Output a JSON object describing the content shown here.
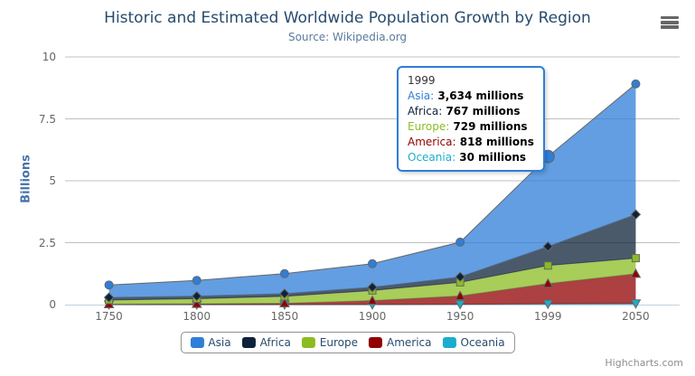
{
  "chart_data": {
    "type": "area",
    "stacking": "normal",
    "title": "Historic and Estimated Worldwide Population Growth by Region",
    "subtitle": "Source: Wikipedia.org",
    "categories": [
      "1750",
      "1800",
      "1850",
      "1900",
      "1950",
      "1999",
      "2050"
    ],
    "unit": "millions",
    "series": [
      {
        "name": "Asia",
        "color": "#2f7ed8",
        "marker": "circle",
        "values": [
          502,
          635,
          809,
          947,
          1402,
          3634,
          5268
        ]
      },
      {
        "name": "Africa",
        "color": "#0d233a",
        "marker": "diamond",
        "values": [
          106,
          107,
          111,
          133,
          221,
          767,
          1766
        ]
      },
      {
        "name": "Europe",
        "color": "#8bbc21",
        "marker": "square",
        "values": [
          163,
          203,
          276,
          408,
          547,
          729,
          628
        ]
      },
      {
        "name": "America",
        "color": "#910000",
        "marker": "triangle",
        "values": [
          18,
          31,
          54,
          156,
          339,
          818,
          1201
        ]
      },
      {
        "name": "Oceania",
        "color": "#1aadce",
        "marker": "triangle-down",
        "values": [
          2,
          2,
          2,
          6,
          13,
          30,
          46
        ]
      }
    ],
    "yAxis": {
      "title": "Billions",
      "tick_labels": [
        "0",
        "2.5",
        "5",
        "7.5",
        "10"
      ],
      "tick_values": [
        0,
        2.5,
        5,
        7.5,
        10
      ],
      "lim": [
        0,
        10
      ]
    },
    "xAxis": {
      "labels": [
        "1750",
        "1800",
        "1850",
        "1900",
        "1950",
        "1999",
        "2050"
      ]
    },
    "legend": {
      "position": "bottom",
      "items": [
        "Asia",
        "Africa",
        "Europe",
        "America",
        "Oceania"
      ]
    },
    "grid": true,
    "style": {
      "line_color": "#666666",
      "fill_opacity": 0.75,
      "grid_color": "#C0C0C0",
      "axis_line_color": "#C0D0E0",
      "title_color": "#274b6d",
      "subtitle_color": "#5b7a9e",
      "label_color": "#666666",
      "y_title_color": "#4572A7",
      "legend_text_color": "#274b6d",
      "legend_border_color": "#909090"
    },
    "hovered_point": {
      "series": "Asia",
      "category": "1999"
    }
  },
  "tooltip": {
    "visible": true,
    "header": "1999",
    "border_color": "#2f7ed8",
    "rows": [
      {
        "name": "Asia",
        "color": "#2f7ed8",
        "value": "3,634 millions"
      },
      {
        "name": "Africa",
        "color": "#0d233a",
        "value": "767 millions"
      },
      {
        "name": "Europe",
        "color": "#8bbc21",
        "value": "729 millions"
      },
      {
        "name": "America",
        "color": "#910000",
        "value": "818 millions"
      },
      {
        "name": "Oceania",
        "color": "#1aadce",
        "value": "30 millions"
      }
    ]
  },
  "credits": {
    "text": "Highcharts.com"
  },
  "export_menu": {
    "tooltip": "Chart context menu"
  }
}
